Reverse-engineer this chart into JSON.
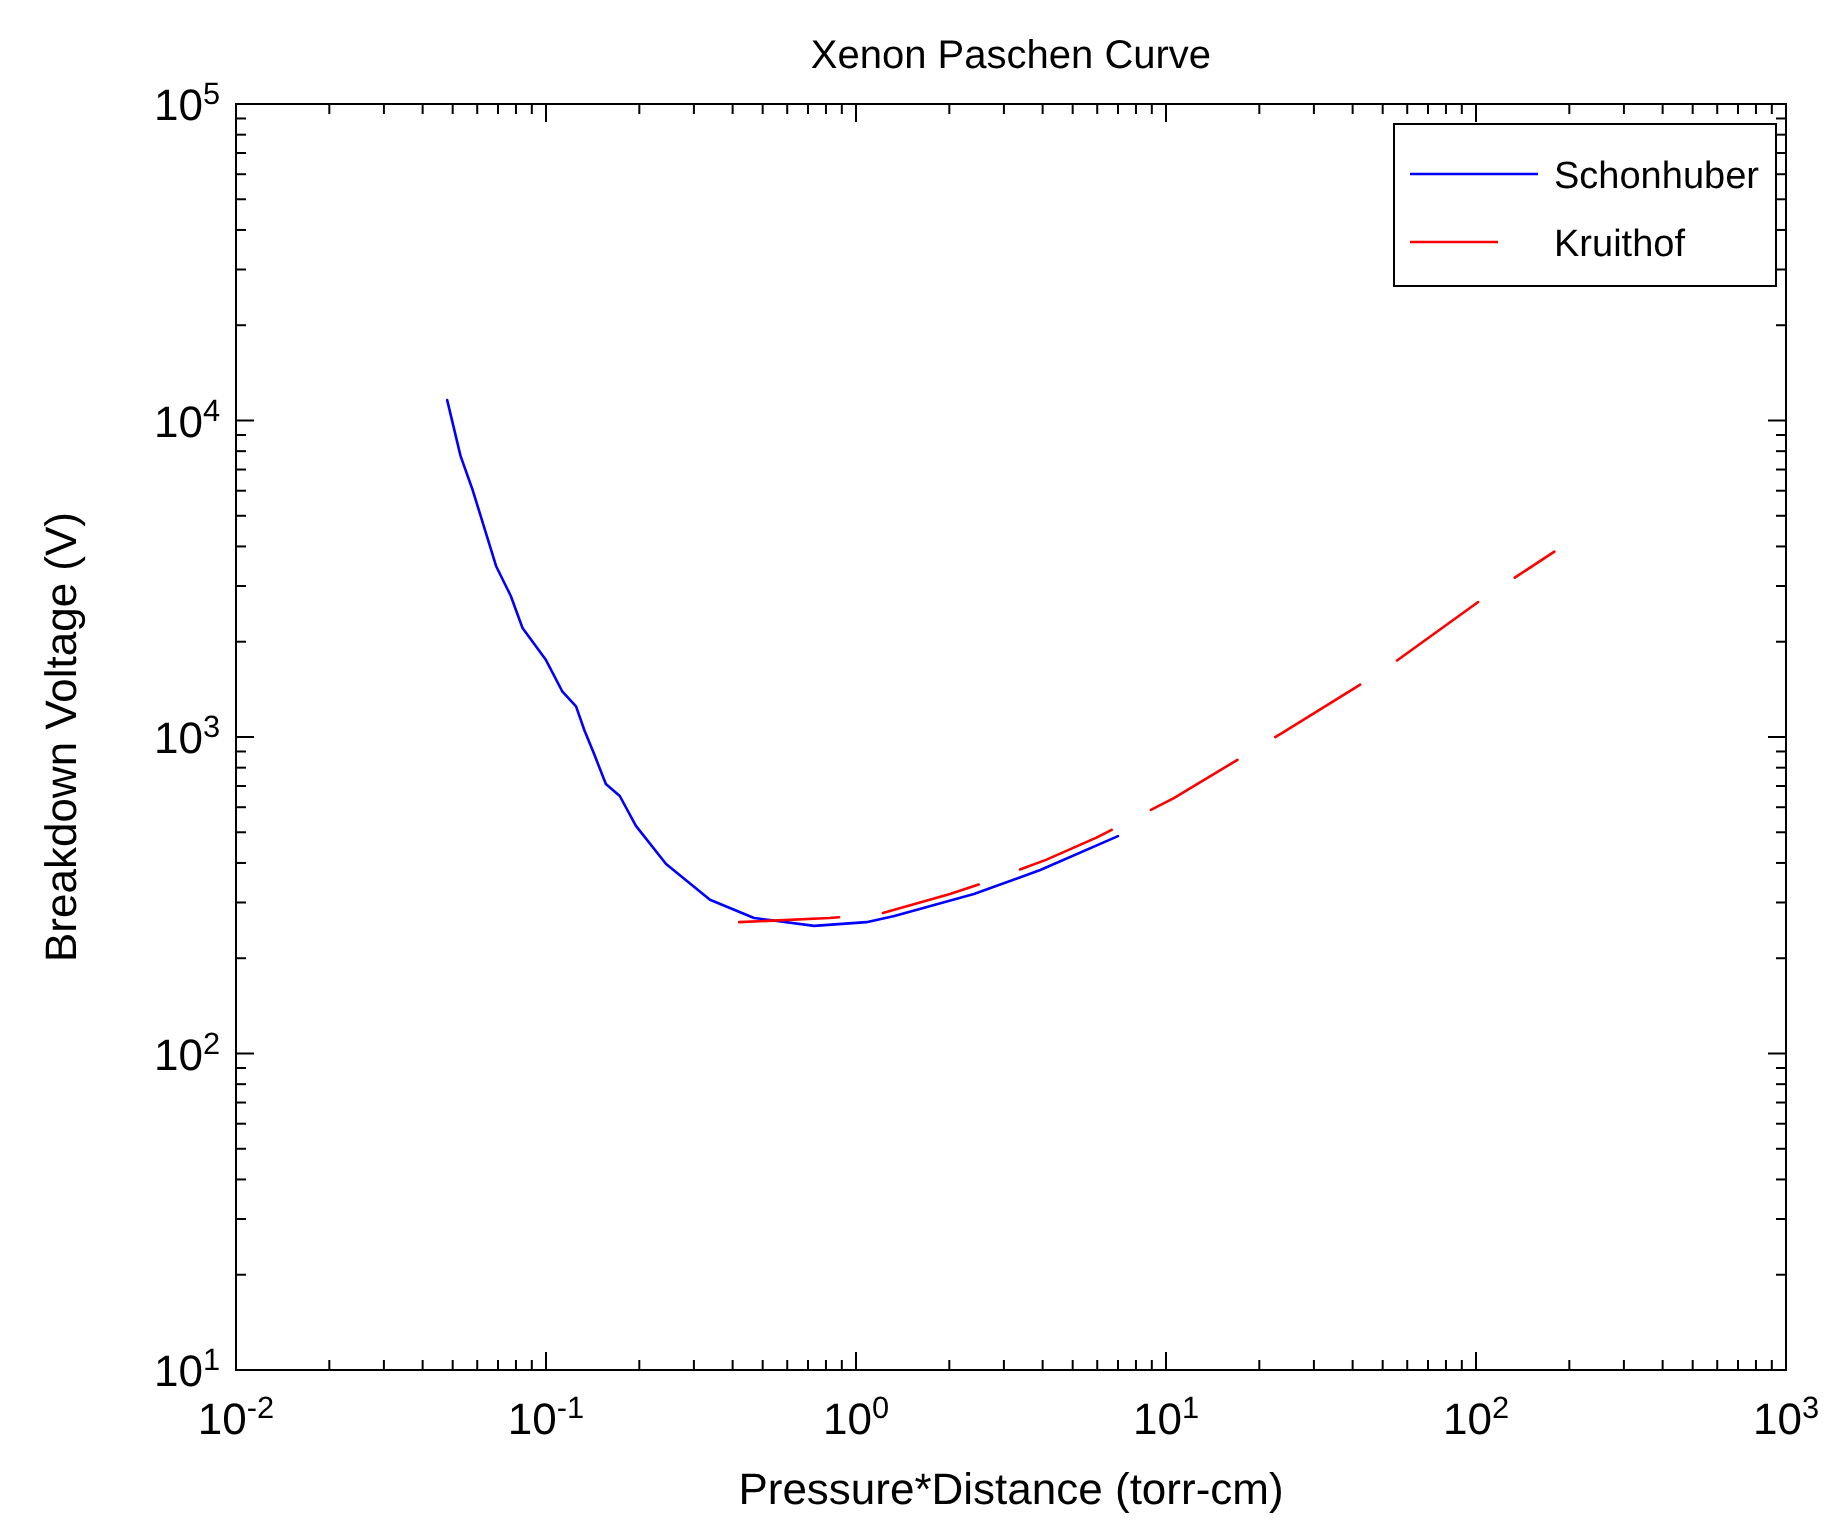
{
  "chart_data": {
    "type": "line",
    "title": "Xenon Paschen Curve",
    "xlabel": "Pressure*Distance (torr-cm)",
    "ylabel": "Breakdown Voltage (V)",
    "log": "xy",
    "legend": "top right",
    "grid": false,
    "xlim": [
      0.01,
      1000
    ],
    "ylim": [
      10,
      100000
    ],
    "xticks": [
      {
        "value": 0.01,
        "label": "10$^{-2}$"
      },
      {
        "value": 0.02,
        "label": null
      },
      {
        "value": 0.03,
        "label": null
      },
      {
        "value": 0.04,
        "label": null
      },
      {
        "value": 0.05,
        "label": null
      },
      {
        "value": 0.06,
        "label": null
      },
      {
        "value": 0.07,
        "label": null
      },
      {
        "value": 0.08,
        "label": null
      },
      {
        "value": 0.09,
        "label": null
      },
      {
        "value": 0.1,
        "label": "10$^{-1}$"
      },
      {
        "value": 0.2,
        "label": null
      },
      {
        "value": 0.3,
        "label": null
      },
      {
        "value": 0.4,
        "label": null
      },
      {
        "value": 0.5,
        "label": null
      },
      {
        "value": 0.6,
        "label": null
      },
      {
        "value": 0.7,
        "label": null
      },
      {
        "value": 0.8,
        "label": null
      },
      {
        "value": 0.9,
        "label": null
      },
      {
        "value": 1,
        "label": "10$^{0}$"
      },
      {
        "value": 2,
        "label": null
      },
      {
        "value": 3,
        "label": null
      },
      {
        "value": 4,
        "label": null
      },
      {
        "value": 5,
        "label": null
      },
      {
        "value": 6,
        "label": null
      },
      {
        "value": 7,
        "label": null
      },
      {
        "value": 8,
        "label": null
      },
      {
        "value": 9,
        "label": null
      },
      {
        "value": 10,
        "label": "10$^{1}$"
      },
      {
        "value": 20,
        "label": null
      },
      {
        "value": 30,
        "label": null
      },
      {
        "value": 40,
        "label": null
      },
      {
        "value": 50,
        "label": null
      },
      {
        "value": 60,
        "label": null
      },
      {
        "value": 70,
        "label": null
      },
      {
        "value": 80,
        "label": null
      },
      {
        "value": 90,
        "label": null
      },
      {
        "value": 100,
        "label": "10$^{2}$"
      },
      {
        "value": 200,
        "label": null
      },
      {
        "value": 300,
        "label": null
      },
      {
        "value": 400,
        "label": null
      },
      {
        "value": 500,
        "label": null
      },
      {
        "value": 600,
        "label": null
      },
      {
        "value": 700,
        "label": null
      },
      {
        "value": 800,
        "label": null
      },
      {
        "value": 900,
        "label": null
      },
      {
        "value": 1000,
        "label": "10$^{3}$"
      }
    ],
    "yticks": [
      {
        "value": 10,
        "label": "10$^{1}$"
      },
      {
        "value": 20,
        "label": null
      },
      {
        "value": 30,
        "label": null
      },
      {
        "value": 40,
        "label": null
      },
      {
        "value": 50,
        "label": null
      },
      {
        "value": 60,
        "label": null
      },
      {
        "value": 70,
        "label": null
      },
      {
        "value": 80,
        "label": null
      },
      {
        "value": 90,
        "label": null
      },
      {
        "value": 100,
        "label": "10$^{2}$"
      },
      {
        "value": 200,
        "label": null
      },
      {
        "value": 300,
        "label": null
      },
      {
        "value": 400,
        "label": null
      },
      {
        "value": 500,
        "label": null
      },
      {
        "value": 600,
        "label": null
      },
      {
        "value": 700,
        "label": null
      },
      {
        "value": 800,
        "label": null
      },
      {
        "value": 900,
        "label": null
      },
      {
        "value": 1000,
        "label": "10$^{3}$"
      },
      {
        "value": 2000,
        "label": null
      },
      {
        "value": 3000,
        "label": null
      },
      {
        "value": 4000,
        "label": null
      },
      {
        "value": 5000,
        "label": null
      },
      {
        "value": 6000,
        "label": null
      },
      {
        "value": 7000,
        "label": null
      },
      {
        "value": 8000,
        "label": null
      },
      {
        "value": 9000,
        "label": null
      },
      {
        "value": 10000,
        "label": "10$^{4}$"
      },
      {
        "value": 20000,
        "label": null
      },
      {
        "value": 30000,
        "label": null
      },
      {
        "value": 40000,
        "label": null
      },
      {
        "value": 50000,
        "label": null
      },
      {
        "value": 60000,
        "label": null
      },
      {
        "value": 70000,
        "label": null
      },
      {
        "value": 80000,
        "label": null
      },
      {
        "value": 90000,
        "label": null
      },
      {
        "value": 100000,
        "label": "10$^{5}$"
      }
    ],
    "series": [
      {
        "name": "Schonhuber",
        "color": "#0000ff",
        "line_style": "solid",
        "x": [
          0.048,
          0.053,
          0.058,
          0.063,
          0.069,
          0.077,
          0.084,
          0.1,
          0.113,
          0.125,
          0.133,
          0.143,
          0.156,
          0.173,
          0.195,
          0.244,
          0.338,
          0.469,
          0.733,
          1.08,
          1.33,
          2.4,
          3.93,
          7.0
        ],
        "values": [
          11600,
          7730,
          6030,
          4640,
          3470,
          2790,
          2210,
          1750,
          1390,
          1250,
          1050,
          883,
          710,
          651,
          524,
          397,
          306,
          268,
          253,
          260,
          272,
          319,
          380,
          486
        ]
      },
      {
        "name": "Kruithof",
        "color": "#ff0000",
        "line_style": "dashed",
        "x": [
          0.42,
          0.82,
          1.19,
          2.01,
          2.51,
          4.1,
          5.94,
          10.6,
          23.3,
          50.5,
          106,
          179
        ],
        "values": [
          260,
          268,
          276,
          319,
          343,
          409,
          480,
          641,
          1020,
          1630,
          2750,
          3850
        ]
      }
    ]
  }
}
